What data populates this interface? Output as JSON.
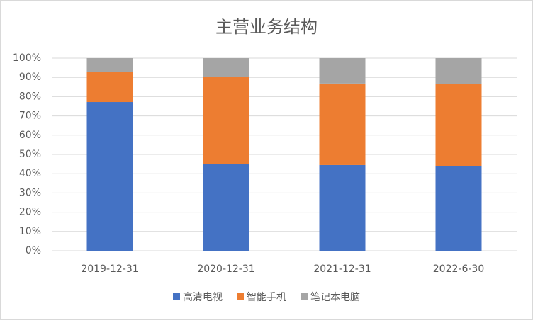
{
  "chart_data": {
    "type": "stacked_bar",
    "title": "主营业务结构",
    "categories": [
      "2019-12-31",
      "2020-12-31",
      "2021-12-31",
      "2022-6-30"
    ],
    "series": [
      {
        "name": "高清电视",
        "color": "#4472c4",
        "values": [
          77.2,
          44.9,
          44.5,
          43.8
        ]
      },
      {
        "name": "智能手机",
        "color": "#ed7d31",
        "values": [
          15.8,
          45.5,
          42.3,
          42.6
        ]
      },
      {
        "name": "笔记本电脑",
        "color": "#a5a5a5",
        "values": [
          7.0,
          9.6,
          13.2,
          13.6
        ]
      }
    ],
    "ylim": [
      0,
      100
    ],
    "yticks": [
      {
        "value": 0,
        "label": "0%"
      },
      {
        "value": 10,
        "label": "10%"
      },
      {
        "value": 20,
        "label": "20%"
      },
      {
        "value": 30,
        "label": "30%"
      },
      {
        "value": 40,
        "label": "40%"
      },
      {
        "value": 50,
        "label": "50%"
      },
      {
        "value": 60,
        "label": "60%"
      },
      {
        "value": 70,
        "label": "70%"
      },
      {
        "value": 80,
        "label": "80%"
      },
      {
        "value": 90,
        "label": "90%"
      },
      {
        "value": 100,
        "label": "100%"
      }
    ],
    "grid": true
  }
}
